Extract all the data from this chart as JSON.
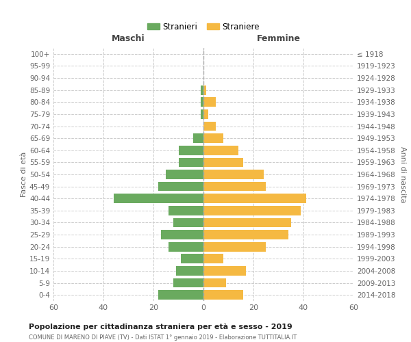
{
  "age_groups": [
    "0-4",
    "5-9",
    "10-14",
    "15-19",
    "20-24",
    "25-29",
    "30-34",
    "35-39",
    "40-44",
    "45-49",
    "50-54",
    "55-59",
    "60-64",
    "65-69",
    "70-74",
    "75-79",
    "80-84",
    "85-89",
    "90-94",
    "95-99",
    "100+"
  ],
  "birth_years": [
    "2014-2018",
    "2009-2013",
    "2004-2008",
    "1999-2003",
    "1994-1998",
    "1989-1993",
    "1984-1988",
    "1979-1983",
    "1974-1978",
    "1969-1973",
    "1964-1968",
    "1959-1963",
    "1954-1958",
    "1949-1953",
    "1944-1948",
    "1939-1943",
    "1934-1938",
    "1929-1933",
    "1924-1928",
    "1919-1923",
    "≤ 1918"
  ],
  "males": [
    18,
    12,
    11,
    9,
    14,
    17,
    12,
    14,
    36,
    18,
    15,
    10,
    10,
    4,
    0,
    1,
    1,
    1,
    0,
    0,
    0
  ],
  "females": [
    16,
    9,
    17,
    8,
    25,
    34,
    35,
    39,
    41,
    25,
    24,
    16,
    14,
    8,
    5,
    2,
    5,
    1,
    0,
    0,
    0
  ],
  "male_color": "#6aaa5f",
  "female_color": "#f5b942",
  "ylabel_left": "Fasce di età",
  "ylabel_right": "Anni di nascita",
  "title_main": "Popolazione per cittadinanza straniera per età e sesso - 2019",
  "title_sub": "COMUNE DI MARENO DI PIAVE (TV) - Dati ISTAT 1° gennaio 2019 - Elaborazione TUTTITALIA.IT",
  "legend_male": "Stranieri",
  "legend_female": "Straniere",
  "col_maschi": "Maschi",
  "col_femmine": "Femmine",
  "xlim": 60,
  "background_color": "#ffffff",
  "grid_color": "#cccccc"
}
